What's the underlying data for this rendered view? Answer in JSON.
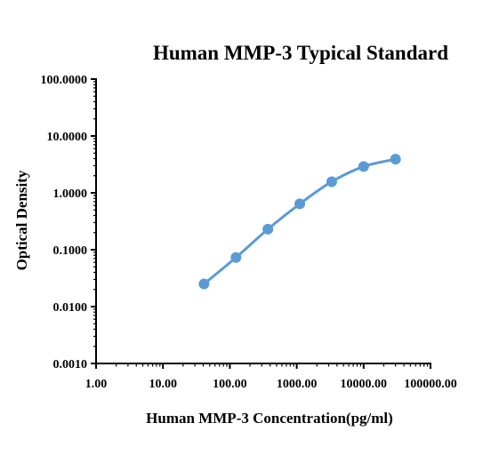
{
  "chart_data": {
    "type": "scatter",
    "title": "Human MMP-3  Typical Standard",
    "xlabel": "Human MMP-3 Concentration(pg/ml)",
    "ylabel": "Optical Density",
    "x_scale": "log",
    "y_scale": "log",
    "xlim": [
      1,
      100000
    ],
    "ylim": [
      0.001,
      100
    ],
    "x_tick_labels": [
      "1.00",
      "10.00",
      "100.00",
      "1000.00",
      "10000.00",
      "100000.00"
    ],
    "y_tick_labels": [
      "0.0010",
      "0.0100",
      "0.1000",
      "1.0000",
      "10.0000",
      "100.0000"
    ],
    "grid": false,
    "legend": "none",
    "series": [
      {
        "color": "#5b9bd5",
        "x": [
          41.15,
          123.5,
          370.4,
          1111,
          3333,
          10000,
          30000
        ],
        "y": [
          0.025,
          0.073,
          0.23,
          0.64,
          1.57,
          2.9,
          3.9
        ],
        "curve": "fitted"
      }
    ]
  }
}
